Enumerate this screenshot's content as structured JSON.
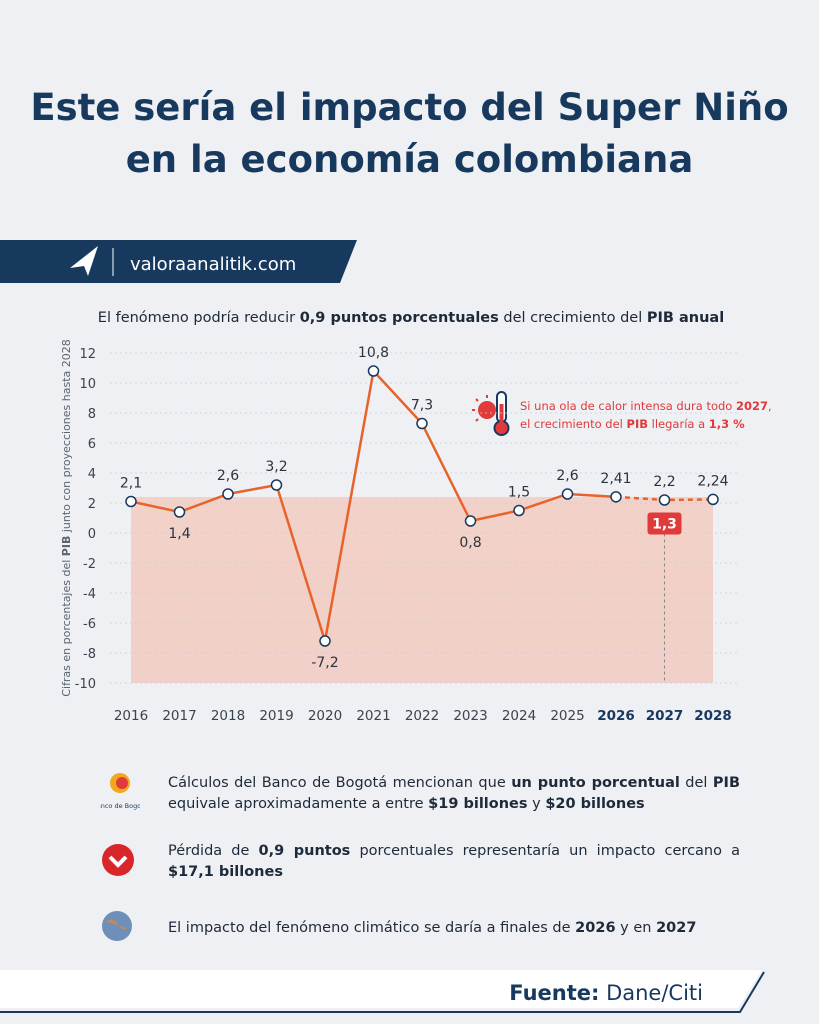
{
  "title_lines": [
    "Este sería el impacto del Super Niño",
    "en la economía colombiana"
  ],
  "brand": "valoraanalitik.com",
  "chart_data": {
    "type": "line",
    "subtitle": [
      {
        "text": "El fenómeno podría reducir ",
        "bold": false
      },
      {
        "text": "0,9 puntos porcentuales",
        "bold": true
      },
      {
        "text": " del crecimiento del ",
        "bold": false
      },
      {
        "text": "PIB anual",
        "bold": true
      }
    ],
    "y_label": [
      {
        "text": "Cifras en porcentajes del ",
        "bold": false
      },
      {
        "text": "PIB",
        "bold": true
      },
      {
        "text": " junto con proyecciones hasta 2028",
        "bold": false
      }
    ],
    "categories": [
      "2016",
      "2017",
      "2018",
      "2019",
      "2020",
      "2021",
      "2022",
      "2023",
      "2024",
      "2025",
      "2026",
      "2027",
      "2028"
    ],
    "series": [
      {
        "color": "#e8632b",
        "values": [
          2.1,
          1.4,
          2.6,
          3.2,
          -7.2,
          10.8,
          7.3,
          0.8,
          1.5,
          2.6,
          2.41,
          2.2,
          2.24
        ],
        "value_labels": [
          "2,1",
          "1,4",
          "2,6",
          "3,2",
          "-7,2",
          "10,8",
          "7,3",
          "0,8",
          "1,5",
          "2,6",
          "2,41",
          "2,2",
          "2,24"
        ]
      }
    ],
    "scenario": {
      "category": "2027",
      "value": 1.3,
      "value_label": "1,3",
      "color": "#e03a3a"
    },
    "annotation": [
      [
        {
          "text": "Si una ola de calor intensa dura todo ",
          "bold": false
        },
        {
          "text": "2027",
          "bold": true
        },
        {
          "text": ",",
          "bold": false
        }
      ],
      [
        {
          "text": "el crecimiento del ",
          "bold": false
        },
        {
          "text": "PIB",
          "bold": true
        },
        {
          "text": " llegaría a ",
          "bold": false
        },
        {
          "text": "1,3 %",
          "bold": true
        }
      ]
    ],
    "ylim": [
      -10,
      12
    ],
    "yticks": [
      -10,
      -8,
      -6,
      -4,
      -2,
      0,
      2,
      4,
      6,
      8,
      10,
      12
    ],
    "grid": true
  },
  "bank_logo": "Banco de Bogotá",
  "notes": [
    [
      {
        "text": "Cálculos del Banco de Bogotá mencionan que ",
        "bold": false
      },
      {
        "text": "un punto porcentual",
        "bold": true
      },
      {
        "text": " del ",
        "bold": false
      },
      {
        "text": "PIB",
        "bold": true
      },
      {
        "text": " equivale aproximadamente a entre ",
        "bold": false
      },
      {
        "text": "$19 billones",
        "bold": true
      },
      {
        "text": " y ",
        "bold": false
      },
      {
        "text": "$20 billones",
        "bold": true
      }
    ],
    [
      {
        "text": "Pérdida de ",
        "bold": false
      },
      {
        "text": "0,9 puntos",
        "bold": true
      },
      {
        "text": " porcentuales representaría un impacto cercano a ",
        "bold": false
      },
      {
        "text": "$17,1 billones",
        "bold": true
      }
    ],
    [
      {
        "text": "El impacto del fenómeno climático se daría a finales de ",
        "bold": false
      },
      {
        "text": "2026",
        "bold": true
      },
      {
        "text": " y en ",
        "bold": false
      },
      {
        "text": "2027",
        "bold": true
      }
    ]
  ],
  "source": [
    {
      "text": "Fuente:",
      "bold": true
    },
    {
      "text": " Dane/Citi",
      "bold": false
    }
  ]
}
